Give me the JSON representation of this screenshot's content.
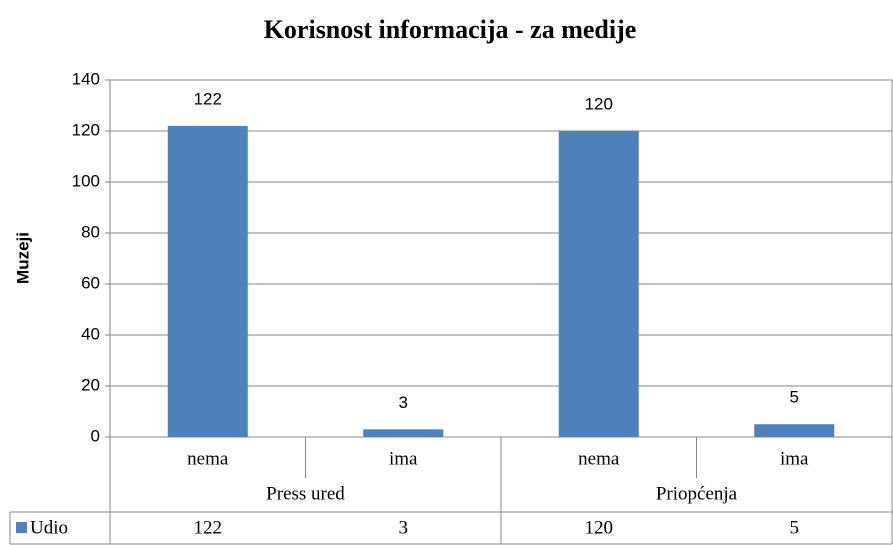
{
  "chart_data": {
    "type": "bar",
    "title": "Korisnost informacija - za medije",
    "y_label": "Muzeji",
    "categories": [
      "nema",
      "ima",
      "nema",
      "ima"
    ],
    "groups": [
      "Press ured",
      "Priopćenja"
    ],
    "series": [
      {
        "name": "Udio",
        "color": "#4f81bd",
        "values": [
          122,
          3,
          120,
          5
        ]
      }
    ],
    "ylim": [
      0,
      140
    ],
    "yticks": [
      0,
      20,
      40,
      60,
      80,
      100,
      120,
      140
    ],
    "grid": true,
    "data_table": true
  }
}
